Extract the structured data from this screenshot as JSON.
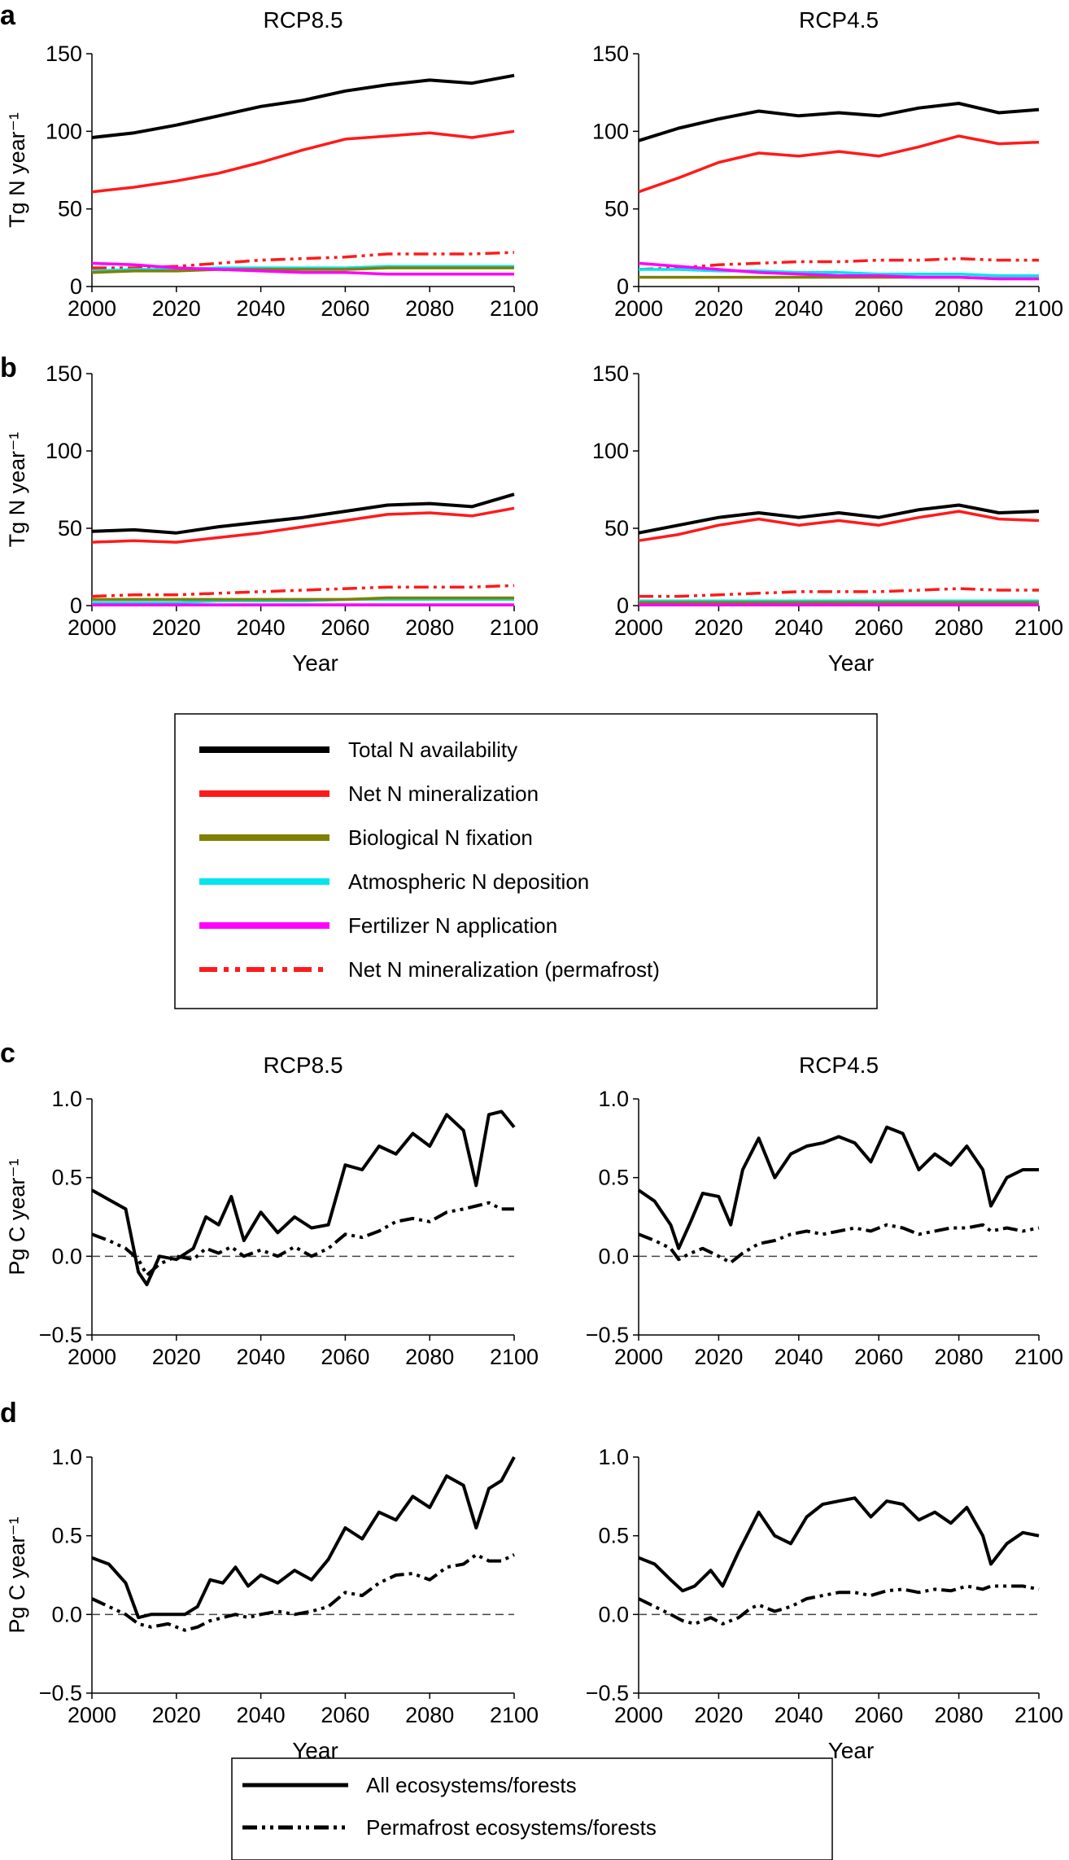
{
  "colors": {
    "total": "#000000",
    "netmin": "#ff1a1a",
    "bnf": "#808000",
    "depo": "#00e5ee",
    "fert": "#ff00ff",
    "permafrost_min": "#ff1a1a",
    "axis": "#000000"
  },
  "panel_labels": [
    "a",
    "b",
    "c",
    "d"
  ],
  "legends": {
    "nitrogen": [
      {
        "key": "total",
        "label": "Total N availability",
        "style": "solid"
      },
      {
        "key": "netmin",
        "label": "Net N mineralization",
        "style": "solid"
      },
      {
        "key": "bnf",
        "label": "Biological N fixation",
        "style": "solid"
      },
      {
        "key": "depo",
        "label": "Atmospheric N deposition",
        "style": "solid"
      },
      {
        "key": "fert",
        "label": "Fertilizer N application",
        "style": "solid"
      },
      {
        "key": "permafrost_min",
        "label": "Net N mineralization (permafrost)",
        "style": "dashdotdot"
      }
    ],
    "carbon": [
      {
        "key": "all",
        "label": "All ecosystems/forests",
        "style": "solid"
      },
      {
        "key": "perma",
        "label": "Permafrost ecosystems/forests",
        "style": "dashdotdot"
      }
    ]
  },
  "chart_data": [
    {
      "id": "a-rcp85",
      "panel": "a",
      "type": "line",
      "title": "RCP8.5",
      "ylabel": "Tg N year⁻¹",
      "xlabel": "",
      "xlim": [
        2000,
        2100
      ],
      "ylim": [
        0,
        150
      ],
      "xticks": [
        2000,
        2020,
        2040,
        2060,
        2080,
        2100
      ],
      "yticks": [
        0,
        50,
        100,
        150
      ],
      "x": [
        2000,
        2010,
        2020,
        2030,
        2040,
        2050,
        2060,
        2070,
        2080,
        2090,
        2100
      ],
      "series": [
        {
          "key": "total",
          "values": [
            96,
            99,
            104,
            110,
            116,
            120,
            126,
            130,
            133,
            131,
            136
          ]
        },
        {
          "key": "netmin",
          "values": [
            61,
            64,
            68,
            73,
            80,
            88,
            95,
            97,
            99,
            96,
            100
          ]
        },
        {
          "key": "permafrost_min",
          "values": [
            12,
            12,
            13,
            15,
            17,
            18,
            19,
            21,
            21,
            21,
            22
          ]
        },
        {
          "key": "depo",
          "values": [
            10,
            11,
            11,
            12,
            12,
            12,
            12,
            13,
            13,
            13,
            13
          ]
        },
        {
          "key": "bnf",
          "values": [
            9,
            10,
            10,
            11,
            11,
            11,
            11,
            12,
            12,
            12,
            12
          ]
        },
        {
          "key": "fert",
          "values": [
            15,
            14,
            12,
            11,
            10,
            9,
            9,
            8,
            8,
            8,
            8
          ]
        }
      ]
    },
    {
      "id": "a-rcp45",
      "panel": "a",
      "type": "line",
      "title": "RCP4.5",
      "ylabel": "",
      "xlabel": "",
      "xlim": [
        2000,
        2100
      ],
      "ylim": [
        0,
        150
      ],
      "xticks": [
        2000,
        2020,
        2040,
        2060,
        2080,
        2100
      ],
      "yticks": [
        0,
        50,
        100,
        150
      ],
      "x": [
        2000,
        2010,
        2020,
        2030,
        2040,
        2050,
        2060,
        2070,
        2080,
        2090,
        2100
      ],
      "series": [
        {
          "key": "total",
          "values": [
            94,
            102,
            108,
            113,
            110,
            112,
            110,
            115,
            118,
            112,
            114
          ]
        },
        {
          "key": "netmin",
          "values": [
            61,
            70,
            80,
            86,
            84,
            87,
            84,
            90,
            97,
            92,
            93
          ]
        },
        {
          "key": "permafrost_min",
          "values": [
            11,
            12,
            14,
            15,
            16,
            16,
            17,
            17,
            18,
            17,
            17
          ]
        },
        {
          "key": "depo",
          "values": [
            11,
            11,
            10,
            10,
            9,
            9,
            8,
            8,
            8,
            7,
            7
          ]
        },
        {
          "key": "bnf",
          "values": [
            6,
            6,
            6,
            6,
            6,
            6,
            6,
            6,
            6,
            5,
            5
          ]
        },
        {
          "key": "fert",
          "values": [
            15,
            13,
            11,
            9,
            8,
            7,
            7,
            6,
            6,
            5,
            5
          ]
        }
      ]
    },
    {
      "id": "b-rcp85",
      "panel": "b",
      "type": "line",
      "title": "",
      "ylabel": "Tg N year⁻¹",
      "xlabel": "Year",
      "xlim": [
        2000,
        2100
      ],
      "ylim": [
        0,
        150
      ],
      "xticks": [
        2000,
        2020,
        2040,
        2060,
        2080,
        2100
      ],
      "yticks": [
        0,
        50,
        100,
        150
      ],
      "x": [
        2000,
        2010,
        2020,
        2030,
        2040,
        2050,
        2060,
        2070,
        2080,
        2090,
        2100
      ],
      "series": [
        {
          "key": "total",
          "values": [
            48,
            49,
            47,
            51,
            54,
            57,
            61,
            65,
            66,
            64,
            72
          ]
        },
        {
          "key": "netmin",
          "values": [
            41,
            42,
            41,
            44,
            47,
            51,
            55,
            59,
            60,
            58,
            63
          ]
        },
        {
          "key": "permafrost_min",
          "values": [
            6,
            7,
            7,
            8,
            9,
            10,
            11,
            12,
            12,
            12,
            13
          ]
        },
        {
          "key": "depo",
          "values": [
            2,
            2,
            2,
            3,
            3,
            3,
            4,
            4,
            4,
            4,
            4
          ]
        },
        {
          "key": "bnf",
          "values": [
            4,
            4,
            4,
            4,
            4,
            4,
            4,
            5,
            5,
            5,
            5
          ]
        },
        {
          "key": "fert",
          "values": [
            0.5,
            0.5,
            0.5,
            0.5,
            0.5,
            0.5,
            0.5,
            0.5,
            0.5,
            0.5,
            0.5
          ]
        }
      ]
    },
    {
      "id": "b-rcp45",
      "panel": "b",
      "type": "line",
      "title": "",
      "ylabel": "",
      "xlabel": "Year",
      "xlim": [
        2000,
        2100
      ],
      "ylim": [
        0,
        150
      ],
      "xticks": [
        2000,
        2020,
        2040,
        2060,
        2080,
        2100
      ],
      "yticks": [
        0,
        50,
        100,
        150
      ],
      "x": [
        2000,
        2010,
        2020,
        2030,
        2040,
        2050,
        2060,
        2070,
        2080,
        2090,
        2100
      ],
      "series": [
        {
          "key": "total",
          "values": [
            47,
            52,
            57,
            60,
            57,
            60,
            57,
            62,
            65,
            60,
            61
          ]
        },
        {
          "key": "netmin",
          "values": [
            42,
            46,
            52,
            56,
            52,
            55,
            52,
            57,
            61,
            56,
            55
          ]
        },
        {
          "key": "permafrost_min",
          "values": [
            6,
            6,
            7,
            8,
            9,
            9,
            9,
            10,
            11,
            10,
            10
          ]
        },
        {
          "key": "depo",
          "values": [
            3,
            3,
            3,
            3,
            3,
            3,
            3,
            3,
            3,
            3,
            3
          ]
        },
        {
          "key": "bnf",
          "values": [
            2,
            2,
            2,
            2,
            2,
            2,
            2,
            2,
            2,
            2,
            2
          ]
        },
        {
          "key": "fert",
          "values": [
            0.5,
            0.5,
            0.5,
            0.5,
            0.5,
            0.5,
            0.5,
            0.5,
            0.5,
            0.5,
            0.5
          ]
        }
      ]
    },
    {
      "id": "c-rcp85",
      "panel": "c",
      "type": "line",
      "title": "RCP8.5",
      "ylabel": "Pg C year⁻¹",
      "xlabel": "",
      "xlim": [
        2000,
        2100
      ],
      "ylim": [
        -0.5,
        1.0
      ],
      "xticks": [
        2000,
        2020,
        2040,
        2060,
        2080,
        2100
      ],
      "yticks": [
        -0.5,
        0.0,
        0.5,
        1.0
      ],
      "x": [
        2000,
        2004,
        2008,
        2011,
        2013,
        2016,
        2020,
        2024,
        2027,
        2030,
        2033,
        2036,
        2040,
        2044,
        2048,
        2052,
        2056,
        2060,
        2064,
        2068,
        2072,
        2076,
        2080,
        2084,
        2088,
        2091,
        2094,
        2097,
        2100
      ],
      "series": [
        {
          "key": "all",
          "values": [
            0.42,
            0.36,
            0.3,
            -0.1,
            -0.18,
            0.0,
            -0.02,
            0.05,
            0.25,
            0.2,
            0.38,
            0.1,
            0.28,
            0.15,
            0.25,
            0.18,
            0.2,
            0.58,
            0.55,
            0.7,
            0.65,
            0.78,
            0.7,
            0.9,
            0.8,
            0.45,
            0.9,
            0.92,
            0.82
          ]
        },
        {
          "key": "perma",
          "values": [
            0.14,
            0.1,
            0.05,
            -0.02,
            -0.12,
            -0.05,
            0.0,
            -0.02,
            0.05,
            0.02,
            0.06,
            0.0,
            0.04,
            0.0,
            0.06,
            0.0,
            0.05,
            0.14,
            0.12,
            0.16,
            0.22,
            0.24,
            0.22,
            0.28,
            0.3,
            0.32,
            0.34,
            0.3,
            0.3
          ]
        }
      ]
    },
    {
      "id": "c-rcp45",
      "panel": "c",
      "type": "line",
      "title": "RCP4.5",
      "ylabel": "",
      "xlabel": "",
      "xlim": [
        2000,
        2100
      ],
      "ylim": [
        -0.5,
        1.0
      ],
      "xticks": [
        2000,
        2020,
        2040,
        2060,
        2080,
        2100
      ],
      "yticks": [
        -0.5,
        0.0,
        0.5,
        1.0
      ],
      "x": [
        2000,
        2004,
        2008,
        2010,
        2013,
        2016,
        2020,
        2023,
        2026,
        2030,
        2034,
        2038,
        2042,
        2046,
        2050,
        2054,
        2058,
        2062,
        2066,
        2070,
        2074,
        2078,
        2082,
        2086,
        2088,
        2092,
        2096,
        2100
      ],
      "series": [
        {
          "key": "all",
          "values": [
            0.42,
            0.35,
            0.2,
            0.05,
            0.22,
            0.4,
            0.38,
            0.2,
            0.55,
            0.75,
            0.5,
            0.65,
            0.7,
            0.72,
            0.76,
            0.72,
            0.6,
            0.82,
            0.78,
            0.55,
            0.65,
            0.58,
            0.7,
            0.55,
            0.32,
            0.5,
            0.55,
            0.55
          ]
        },
        {
          "key": "perma",
          "values": [
            0.14,
            0.1,
            0.05,
            -0.02,
            0.02,
            0.05,
            0.0,
            -0.04,
            0.02,
            0.08,
            0.1,
            0.14,
            0.16,
            0.14,
            0.16,
            0.18,
            0.16,
            0.2,
            0.18,
            0.14,
            0.16,
            0.18,
            0.18,
            0.2,
            0.16,
            0.18,
            0.16,
            0.18
          ]
        }
      ]
    },
    {
      "id": "d-rcp85",
      "panel": "d",
      "type": "line",
      "title": "",
      "ylabel": "Pg C year⁻¹",
      "xlabel": "Year",
      "xlim": [
        2000,
        2100
      ],
      "ylim": [
        -0.5,
        1.0
      ],
      "xticks": [
        2000,
        2020,
        2040,
        2060,
        2080,
        2100
      ],
      "yticks": [
        -0.5,
        0.0,
        0.5,
        1.0
      ],
      "x": [
        2000,
        2004,
        2008,
        2011,
        2014,
        2018,
        2022,
        2025,
        2028,
        2031,
        2034,
        2037,
        2040,
        2044,
        2048,
        2052,
        2056,
        2060,
        2064,
        2068,
        2072,
        2076,
        2080,
        2084,
        2088,
        2091,
        2094,
        2097,
        2100
      ],
      "series": [
        {
          "key": "all",
          "values": [
            0.36,
            0.32,
            0.2,
            -0.02,
            0.0,
            0.0,
            0.0,
            0.05,
            0.22,
            0.2,
            0.3,
            0.18,
            0.25,
            0.2,
            0.28,
            0.22,
            0.35,
            0.55,
            0.48,
            0.65,
            0.6,
            0.75,
            0.68,
            0.88,
            0.82,
            0.55,
            0.8,
            0.85,
            1.0
          ]
        },
        {
          "key": "perma",
          "values": [
            0.1,
            0.05,
            0.0,
            -0.06,
            -0.08,
            -0.06,
            -0.1,
            -0.08,
            -0.04,
            -0.02,
            0.0,
            -0.02,
            0.0,
            0.02,
            0.0,
            0.02,
            0.05,
            0.14,
            0.12,
            0.2,
            0.25,
            0.26,
            0.22,
            0.3,
            0.32,
            0.38,
            0.34,
            0.34,
            0.38
          ]
        }
      ]
    },
    {
      "id": "d-rcp45",
      "panel": "d",
      "type": "line",
      "title": "",
      "ylabel": "",
      "xlabel": "Year",
      "xlim": [
        2000,
        2100
      ],
      "ylim": [
        -0.5,
        1.0
      ],
      "xticks": [
        2000,
        2020,
        2040,
        2060,
        2080,
        2100
      ],
      "yticks": [
        -0.5,
        0.0,
        0.5,
        1.0
      ],
      "x": [
        2000,
        2004,
        2008,
        2011,
        2014,
        2018,
        2021,
        2025,
        2028,
        2030,
        2034,
        2038,
        2042,
        2046,
        2050,
        2054,
        2058,
        2062,
        2066,
        2070,
        2074,
        2078,
        2082,
        2086,
        2088,
        2092,
        2096,
        2100
      ],
      "series": [
        {
          "key": "all",
          "values": [
            0.36,
            0.32,
            0.22,
            0.15,
            0.18,
            0.28,
            0.18,
            0.4,
            0.55,
            0.65,
            0.5,
            0.45,
            0.62,
            0.7,
            0.72,
            0.74,
            0.62,
            0.72,
            0.7,
            0.6,
            0.65,
            0.58,
            0.68,
            0.5,
            0.32,
            0.45,
            0.52,
            0.5
          ]
        },
        {
          "key": "perma",
          "values": [
            0.1,
            0.05,
            0.0,
            -0.04,
            -0.06,
            -0.02,
            -0.06,
            -0.02,
            0.04,
            0.06,
            0.02,
            0.05,
            0.1,
            0.12,
            0.14,
            0.14,
            0.12,
            0.15,
            0.16,
            0.14,
            0.16,
            0.15,
            0.18,
            0.16,
            0.18,
            0.18,
            0.18,
            0.16
          ]
        }
      ]
    }
  ]
}
